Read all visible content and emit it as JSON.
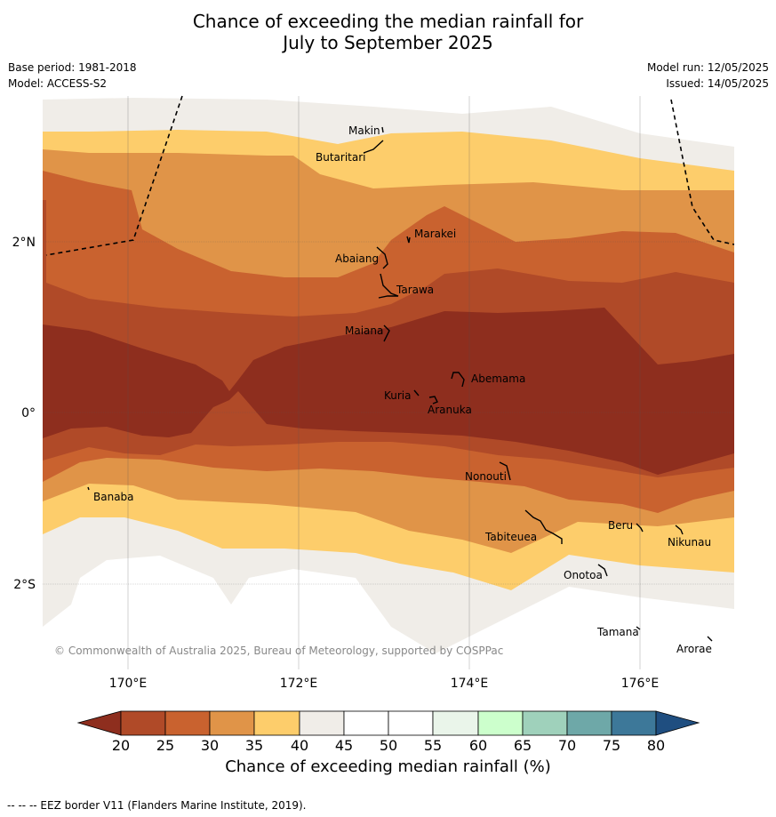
{
  "title_line1": "Chance of exceeding the median rainfall for",
  "title_line2": "July to September 2025",
  "left_meta": {
    "base_period": "Base period: 1981-2018",
    "model": "Model: ACCESS-S2"
  },
  "right_meta": {
    "model_run": "Model run: 12/05/2025",
    "issued": "Issued: 14/05/2025"
  },
  "map": {
    "lat_labels": [
      "2°N",
      "0°",
      "2°S"
    ],
    "lon_labels": [
      "170°E",
      "172°E",
      "174°E",
      "176°E"
    ],
    "places": [
      "Makin",
      "Butaritari",
      "Marakei",
      "Abaiang",
      "Tarawa",
      "Maiana",
      "Abemama",
      "Kuria",
      "Aranuka",
      "Nonouti",
      "Banaba",
      "Tabiteuea",
      "Beru",
      "Nikunau",
      "Onotoa",
      "Tamana",
      "Arorae"
    ],
    "copyright": "© Commonwealth of Australia 2025, Bureau of Meteorology, supported by COSPPac"
  },
  "colorbar": {
    "ticks": [
      "20",
      "25",
      "30",
      "35",
      "40",
      "45",
      "50",
      "55",
      "60",
      "65",
      "70",
      "75",
      "80"
    ],
    "colors": {
      "under": "#8e2e1e",
      "c20_25": "#b04a28",
      "c25_30": "#c9622f",
      "c30_35": "#e09448",
      "c35_40": "#fdcd6b",
      "c40_45": "#f0ede8",
      "c45_55": "#ffffff",
      "c55_60": "#eaf5ea",
      "c60_65": "#ccffcc",
      "c65_70": "#9fd1bb",
      "c70_75": "#6ea8a8",
      "c75_80": "#3d7899",
      "over": "#1f4e80"
    },
    "label": "Chance of exceeding median rainfall (%)"
  },
  "footnote": "--  --  -- EEZ border V11 (Flanders Marine Institute, 2019)."
}
